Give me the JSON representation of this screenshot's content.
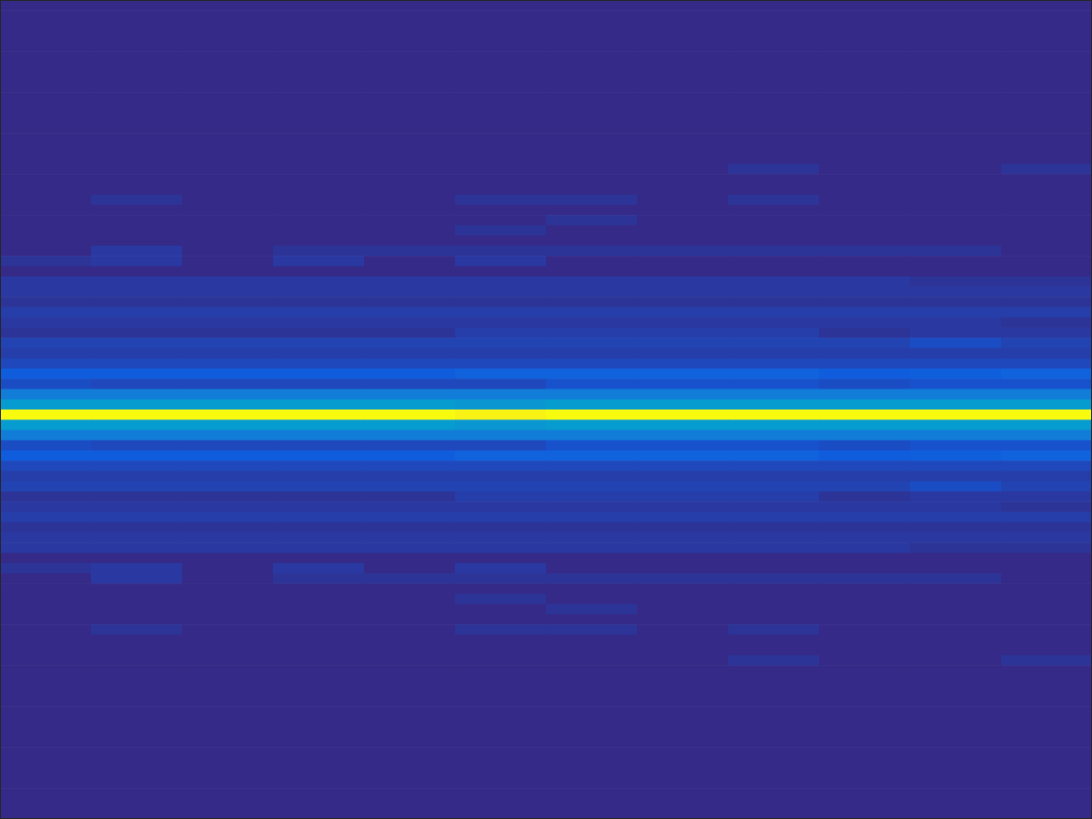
{
  "chart_data": {
    "type": "heatmap",
    "tick_labels": false,
    "clim": [
      0,
      1
    ],
    "cells": [
      [
        0,
        0,
        0,
        0,
        0,
        0,
        0,
        0,
        0,
        0,
        0,
        0
      ],
      [
        0,
        0,
        0,
        0,
        0,
        0,
        0,
        0,
        0,
        0,
        0,
        0
      ],
      [
        0,
        0,
        0,
        0,
        0,
        0,
        0,
        0,
        0,
        0,
        0,
        0
      ],
      [
        0,
        0,
        0,
        0,
        0,
        0,
        0,
        0,
        0,
        0,
        0,
        0
      ],
      [
        0,
        0,
        0,
        0,
        0,
        0,
        0,
        0,
        0,
        0,
        0,
        0
      ],
      [
        0,
        0,
        0,
        0,
        0,
        0,
        0,
        0,
        0,
        0,
        0,
        0
      ],
      [
        0,
        0,
        0,
        0,
        0,
        0,
        0,
        0,
        0,
        0,
        0,
        0
      ],
      [
        0,
        0,
        0,
        0,
        0,
        0,
        0,
        0,
        0,
        0,
        0,
        0
      ],
      [
        0,
        0,
        0,
        0,
        0,
        0,
        0,
        0,
        0,
        0,
        0,
        0
      ],
      [
        0,
        0,
        0,
        0,
        0,
        0,
        0,
        0,
        0,
        0,
        0,
        0
      ],
      [
        0,
        0,
        0,
        0,
        0,
        0,
        0,
        0,
        0,
        0,
        0,
        0
      ],
      [
        0,
        0,
        0,
        0,
        0,
        0,
        0,
        0,
        0,
        0,
        0,
        0
      ],
      [
        0,
        0,
        0,
        0,
        0,
        0,
        0,
        0,
        0,
        0,
        0,
        0
      ],
      [
        0,
        0,
        0,
        0,
        0,
        0,
        0,
        0,
        0,
        0,
        0,
        0
      ],
      [
        0,
        0,
        0,
        0,
        0,
        0,
        0,
        0,
        0,
        0,
        0,
        0
      ],
      [
        0,
        0,
        0,
        0,
        0,
        0,
        0,
        0,
        0,
        0,
        0,
        0
      ],
      [
        0,
        0,
        0,
        0,
        0,
        0,
        0,
        0,
        0.02,
        0,
        0,
        0.02
      ],
      [
        0,
        0,
        0,
        0,
        0,
        0,
        0,
        0,
        0,
        0,
        0,
        0
      ],
      [
        0,
        0,
        0,
        0,
        0,
        0,
        0,
        0,
        0,
        0,
        0,
        0
      ],
      [
        0,
        0.02,
        0,
        0,
        0,
        0.02,
        0.02,
        0,
        0.02,
        0,
        0,
        0
      ],
      [
        0,
        0,
        0,
        0,
        0,
        0,
        0,
        0,
        0,
        0,
        0,
        0
      ],
      [
        0,
        0,
        0,
        0,
        0,
        0,
        0.02,
        0,
        0,
        0,
        0,
        0
      ],
      [
        0,
        0,
        0,
        0,
        0,
        0.02,
        0,
        0,
        0,
        0,
        0,
        0
      ],
      [
        0,
        0,
        0,
        0,
        0,
        0,
        0,
        0,
        0,
        0,
        0,
        0
      ],
      [
        0,
        0.03,
        0,
        0.02,
        0.02,
        0.02,
        0.02,
        0.02,
        0.02,
        0.02,
        0.02,
        0
      ],
      [
        0.02,
        0.03,
        0,
        0.03,
        0,
        0.03,
        0,
        0,
        0,
        0,
        0,
        0
      ],
      [
        0,
        0,
        0,
        0,
        0,
        0,
        0,
        0,
        0,
        0,
        0,
        0
      ],
      [
        0.03,
        0.03,
        0.03,
        0.03,
        0.03,
        0.03,
        0.03,
        0.03,
        0.03,
        0.03,
        0.02,
        0.02
      ],
      [
        0.03,
        0.03,
        0.03,
        0.03,
        0.03,
        0.03,
        0.03,
        0.03,
        0.03,
        0.03,
        0.03,
        0.03
      ],
      [
        0.02,
        0.02,
        0.02,
        0.02,
        0.02,
        0.02,
        0.02,
        0.02,
        0.02,
        0.02,
        0.02,
        0.02
      ],
      [
        0.04,
        0.04,
        0.04,
        0.04,
        0.04,
        0.04,
        0.04,
        0.04,
        0.04,
        0.04,
        0.04,
        0.04
      ],
      [
        0.03,
        0.03,
        0.03,
        0.03,
        0.03,
        0.03,
        0.03,
        0.03,
        0.03,
        0.03,
        0.03,
        0.02
      ],
      [
        0.02,
        0.02,
        0.02,
        0.02,
        0.02,
        0.04,
        0.04,
        0.04,
        0.04,
        0.02,
        0.03,
        0.03
      ],
      [
        0.05,
        0.05,
        0.05,
        0.05,
        0.05,
        0.05,
        0.05,
        0.05,
        0.05,
        0.05,
        0.07,
        0.05
      ],
      [
        0.04,
        0.04,
        0.04,
        0.04,
        0.04,
        0.04,
        0.04,
        0.04,
        0.04,
        0.04,
        0.04,
        0.04
      ],
      [
        0.06,
        0.06,
        0.06,
        0.06,
        0.06,
        0.06,
        0.06,
        0.06,
        0.06,
        0.06,
        0.06,
        0.06
      ],
      [
        0.1,
        0.1,
        0.1,
        0.1,
        0.1,
        0.12,
        0.12,
        0.12,
        0.12,
        0.1,
        0.11,
        0.12
      ],
      [
        0.07,
        0.06,
        0.06,
        0.06,
        0.06,
        0.06,
        0.08,
        0.08,
        0.08,
        0.07,
        0.08,
        0.08
      ],
      [
        0.2,
        0.2,
        0.2,
        0.2,
        0.2,
        0.2,
        0.2,
        0.2,
        0.2,
        0.2,
        0.2,
        0.2
      ],
      [
        0.3,
        0.3,
        0.3,
        0.3,
        0.3,
        0.28,
        0.3,
        0.3,
        0.3,
        0.3,
        0.3,
        0.3
      ],
      [
        1,
        1,
        1,
        1,
        1,
        0.97,
        1,
        1,
        1,
        1,
        1,
        1
      ],
      [
        0.3,
        0.3,
        0.3,
        0.3,
        0.3,
        0.28,
        0.3,
        0.3,
        0.3,
        0.3,
        0.3,
        0.3
      ],
      [
        0.2,
        0.2,
        0.2,
        0.2,
        0.2,
        0.2,
        0.2,
        0.2,
        0.2,
        0.2,
        0.2,
        0.2
      ],
      [
        0.07,
        0.06,
        0.06,
        0.06,
        0.06,
        0.06,
        0.08,
        0.08,
        0.08,
        0.07,
        0.08,
        0.08
      ],
      [
        0.1,
        0.1,
        0.1,
        0.1,
        0.1,
        0.12,
        0.12,
        0.12,
        0.12,
        0.1,
        0.11,
        0.12
      ],
      [
        0.06,
        0.06,
        0.06,
        0.06,
        0.06,
        0.06,
        0.06,
        0.06,
        0.06,
        0.06,
        0.06,
        0.06
      ],
      [
        0.04,
        0.04,
        0.04,
        0.04,
        0.04,
        0.04,
        0.04,
        0.04,
        0.04,
        0.04,
        0.04,
        0.04
      ],
      [
        0.05,
        0.05,
        0.05,
        0.05,
        0.05,
        0.05,
        0.05,
        0.05,
        0.05,
        0.05,
        0.07,
        0.05
      ],
      [
        0.02,
        0.02,
        0.02,
        0.02,
        0.02,
        0.04,
        0.04,
        0.04,
        0.04,
        0.02,
        0.03,
        0.03
      ],
      [
        0.03,
        0.03,
        0.03,
        0.03,
        0.03,
        0.03,
        0.03,
        0.03,
        0.03,
        0.03,
        0.03,
        0.02
      ],
      [
        0.04,
        0.04,
        0.04,
        0.04,
        0.04,
        0.04,
        0.04,
        0.04,
        0.04,
        0.04,
        0.04,
        0.04
      ],
      [
        0.02,
        0.02,
        0.02,
        0.02,
        0.02,
        0.02,
        0.02,
        0.02,
        0.02,
        0.02,
        0.02,
        0.02
      ],
      [
        0.03,
        0.03,
        0.03,
        0.03,
        0.03,
        0.03,
        0.03,
        0.03,
        0.03,
        0.03,
        0.03,
        0.03
      ],
      [
        0.03,
        0.03,
        0.03,
        0.03,
        0.03,
        0.03,
        0.03,
        0.03,
        0.03,
        0.03,
        0.02,
        0.02
      ],
      [
        0,
        0,
        0,
        0,
        0,
        0,
        0,
        0,
        0,
        0,
        0,
        0
      ],
      [
        0.02,
        0.03,
        0,
        0.03,
        0,
        0.03,
        0,
        0,
        0,
        0,
        0,
        0
      ],
      [
        0,
        0.03,
        0,
        0.02,
        0.02,
        0.02,
        0.02,
        0.02,
        0.02,
        0.02,
        0.02,
        0
      ],
      [
        0,
        0,
        0,
        0,
        0,
        0,
        0,
        0,
        0,
        0,
        0,
        0
      ],
      [
        0,
        0,
        0,
        0,
        0,
        0.02,
        0,
        0,
        0,
        0,
        0,
        0
      ],
      [
        0,
        0,
        0,
        0,
        0,
        0,
        0.02,
        0,
        0,
        0,
        0,
        0
      ],
      [
        0,
        0,
        0,
        0,
        0,
        0,
        0,
        0,
        0,
        0,
        0,
        0
      ],
      [
        0,
        0.02,
        0,
        0,
        0,
        0.02,
        0.02,
        0,
        0.02,
        0,
        0,
        0
      ],
      [
        0,
        0,
        0,
        0,
        0,
        0,
        0,
        0,
        0,
        0,
        0,
        0
      ],
      [
        0,
        0,
        0,
        0,
        0,
        0,
        0,
        0,
        0,
        0,
        0,
        0
      ],
      [
        0,
        0,
        0,
        0,
        0,
        0,
        0,
        0,
        0.02,
        0,
        0,
        0.02
      ],
      [
        0,
        0,
        0,
        0,
        0,
        0,
        0,
        0,
        0,
        0,
        0,
        0
      ],
      [
        0,
        0,
        0,
        0,
        0,
        0,
        0,
        0,
        0,
        0,
        0,
        0
      ],
      [
        0,
        0,
        0,
        0,
        0,
        0,
        0,
        0,
        0,
        0,
        0,
        0
      ],
      [
        0,
        0,
        0,
        0,
        0,
        0,
        0,
        0,
        0,
        0,
        0,
        0
      ],
      [
        0,
        0,
        0,
        0,
        0,
        0,
        0,
        0,
        0,
        0,
        0,
        0
      ],
      [
        0,
        0,
        0,
        0,
        0,
        0,
        0,
        0,
        0,
        0,
        0,
        0
      ],
      [
        0,
        0,
        0,
        0,
        0,
        0,
        0,
        0,
        0,
        0,
        0,
        0
      ],
      [
        0,
        0,
        0,
        0,
        0,
        0,
        0,
        0,
        0,
        0,
        0,
        0
      ],
      [
        0,
        0,
        0,
        0,
        0,
        0,
        0,
        0,
        0,
        0,
        0,
        0
      ],
      [
        0,
        0,
        0,
        0,
        0,
        0,
        0,
        0,
        0,
        0,
        0,
        0
      ],
      [
        0,
        0,
        0,
        0,
        0,
        0,
        0,
        0,
        0,
        0,
        0,
        0
      ],
      [
        0,
        0,
        0,
        0,
        0,
        0,
        0,
        0,
        0,
        0,
        0,
        0
      ],
      [
        0,
        0,
        0,
        0,
        0,
        0,
        0,
        0,
        0,
        0,
        0,
        0
      ],
      [
        0,
        0,
        0,
        0,
        0,
        0,
        0,
        0,
        0,
        0,
        0,
        0
      ],
      [
        0,
        0,
        0,
        0,
        0,
        0,
        0,
        0,
        0,
        0,
        0,
        0
      ]
    ]
  }
}
